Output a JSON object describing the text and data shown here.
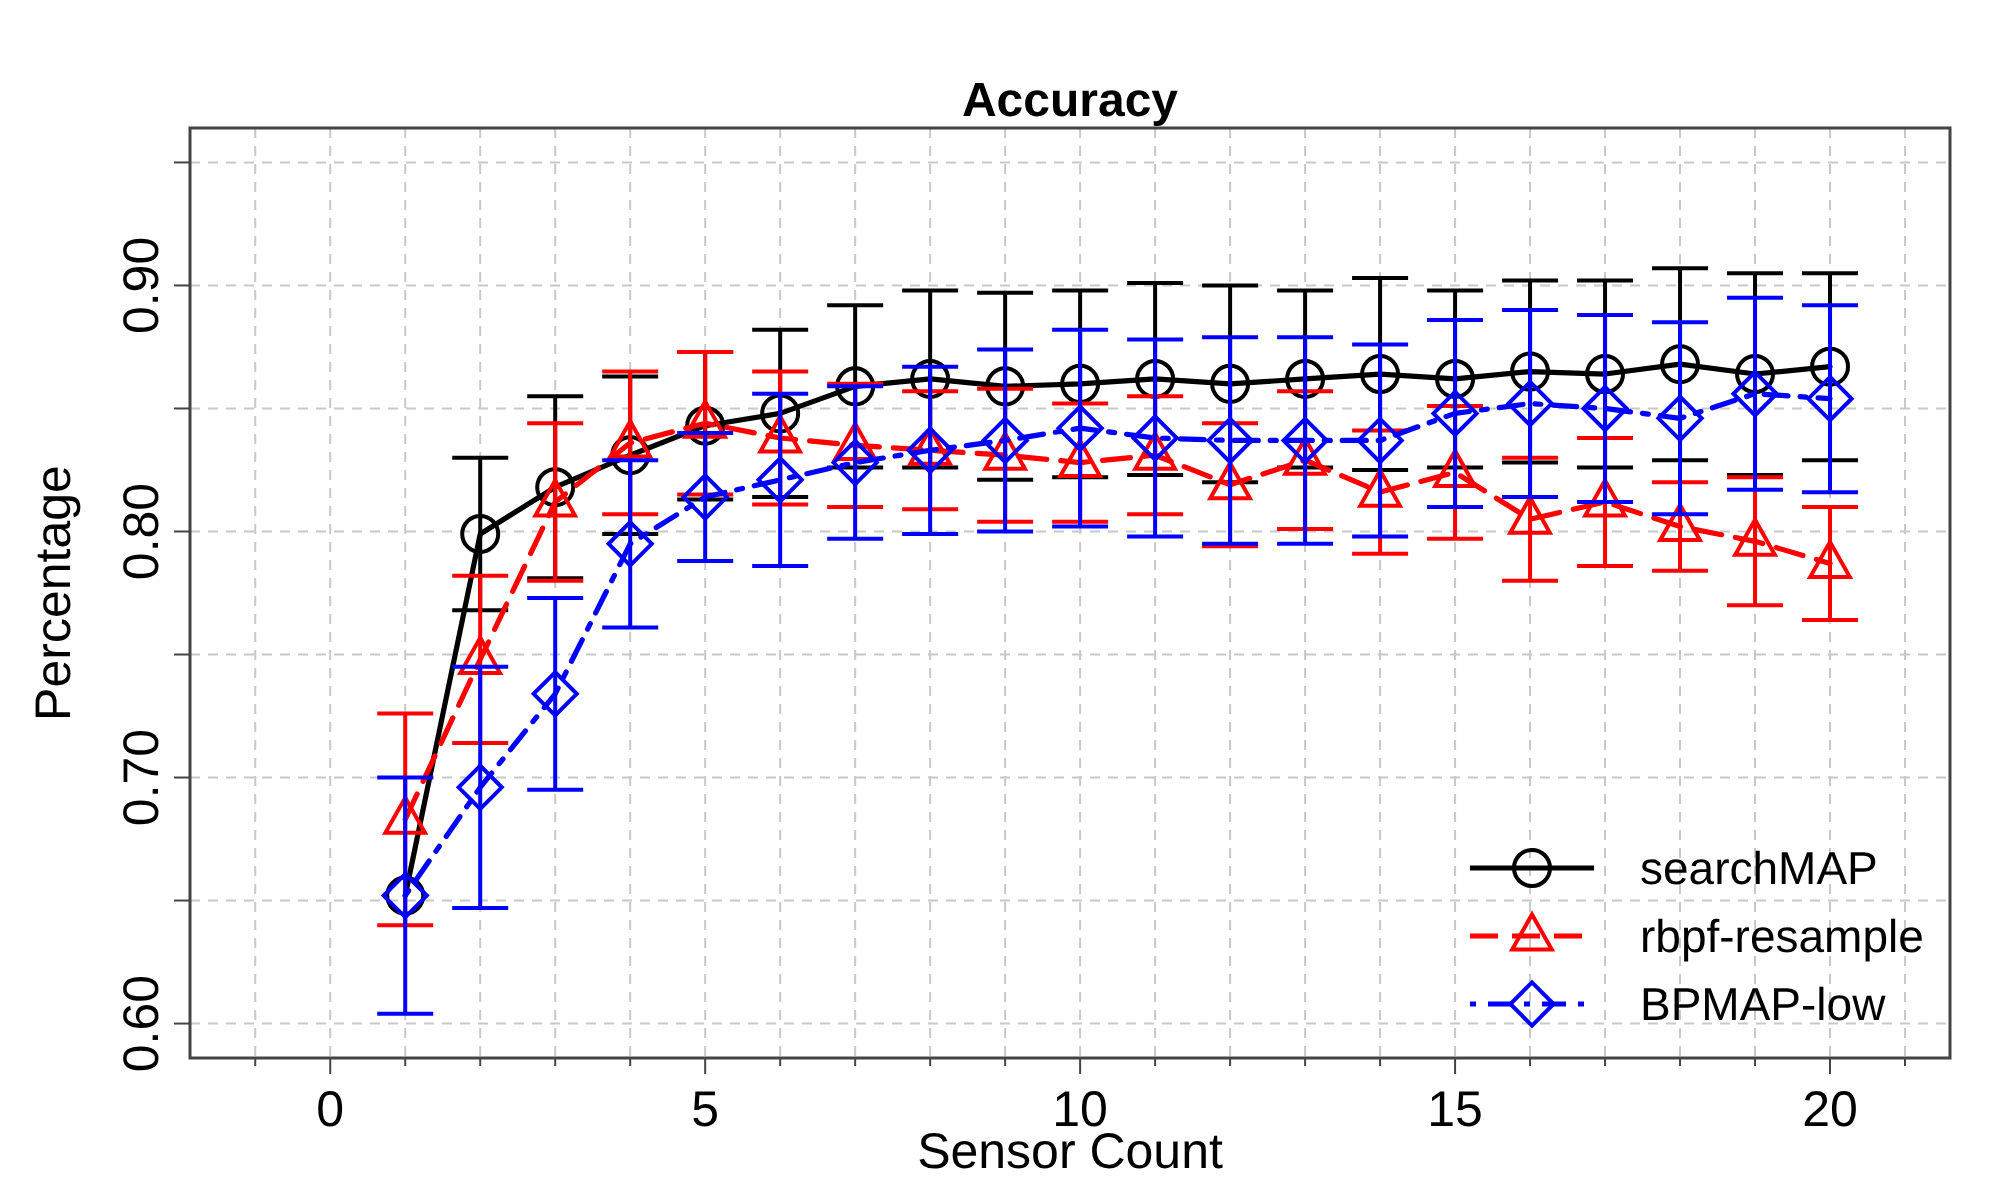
{
  "chart_data": {
    "type": "line",
    "title": "Accuracy",
    "xlabel": "Sensor Count",
    "ylabel": "Percentage",
    "x": [
      1,
      2,
      3,
      4,
      5,
      6,
      7,
      8,
      9,
      10,
      11,
      12,
      13,
      14,
      15,
      16,
      17,
      18,
      19,
      20
    ],
    "series": [
      {
        "name": "searchMAP",
        "color": "#000000",
        "marker": "circle",
        "line_style": "solid",
        "values": [
          0.652,
          0.799,
          0.818,
          0.831,
          0.843,
          0.848,
          0.859,
          0.862,
          0.859,
          0.86,
          0.862,
          0.86,
          0.862,
          0.864,
          0.862,
          0.865,
          0.864,
          0.868,
          0.864,
          0.867
        ],
        "errors": [
          null,
          0.031,
          0.037,
          0.032,
          0.03,
          0.034,
          0.033,
          0.036,
          0.038,
          0.038,
          0.039,
          0.04,
          0.036,
          0.039,
          0.036,
          0.037,
          0.038,
          0.039,
          0.041,
          0.038
        ]
      },
      {
        "name": "rbpf-resample",
        "color": "#ff0000",
        "marker": "triangle",
        "line_style": "dashed",
        "values": [
          0.683,
          0.748,
          0.812,
          0.836,
          0.844,
          0.838,
          0.835,
          0.833,
          0.831,
          0.828,
          0.831,
          0.819,
          0.829,
          0.816,
          0.824,
          0.805,
          0.812,
          0.802,
          0.796,
          0.787
        ],
        "errors": [
          0.043,
          0.034,
          0.032,
          0.029,
          0.029,
          0.027,
          0.025,
          0.024,
          0.027,
          0.024,
          0.024,
          0.025,
          0.028,
          0.025,
          0.027,
          0.025,
          0.026,
          0.018,
          0.026,
          0.023
        ]
      },
      {
        "name": "BPMAP-low",
        "color": "#0000ff",
        "marker": "diamond",
        "line_style": "dotted",
        "values": [
          0.652,
          0.696,
          0.734,
          0.795,
          0.814,
          0.821,
          0.828,
          0.833,
          0.837,
          0.842,
          0.838,
          0.837,
          0.837,
          0.837,
          0.848,
          0.852,
          0.85,
          0.846,
          0.856,
          0.854
        ],
        "errors": [
          0.048,
          0.049,
          0.039,
          0.034,
          0.026,
          0.035,
          0.031,
          0.034,
          0.037,
          0.04,
          0.04,
          0.042,
          0.042,
          0.039,
          0.038,
          0.038,
          0.038,
          0.039,
          0.039,
          0.038
        ]
      }
    ],
    "xlim": [
      -1.87,
      21.6
    ],
    "ylim": [
      0.586,
      0.964
    ],
    "xticks": [
      {
        "value": -1,
        "label": null
      },
      0,
      {
        "value": 1,
        "label": null
      },
      {
        "value": 2,
        "label": null
      },
      {
        "value": 3,
        "label": null
      },
      {
        "value": 4,
        "label": null
      },
      5,
      {
        "value": 6,
        "label": null
      },
      {
        "value": 7,
        "label": null
      },
      {
        "value": 8,
        "label": null
      },
      {
        "value": 9,
        "label": null
      },
      10,
      {
        "value": 11,
        "label": null
      },
      {
        "value": 12,
        "label": null
      },
      {
        "value": 13,
        "label": null
      },
      {
        "value": 14,
        "label": null
      },
      15,
      {
        "value": 16,
        "label": null
      },
      {
        "value": 17,
        "label": null
      },
      {
        "value": 18,
        "label": null
      },
      {
        "value": 19,
        "label": null
      },
      20,
      {
        "value": 21,
        "label": null
      }
    ],
    "yticks": [
      {
        "value": 0.6,
        "label": "0.60"
      },
      {
        "value": 0.65,
        "label": null
      },
      {
        "value": 0.7,
        "label": "0.70"
      },
      {
        "value": 0.75,
        "label": null
      },
      {
        "value": 0.8,
        "label": "0.80"
      },
      {
        "value": 0.85,
        "label": null
      },
      {
        "value": 0.9,
        "label": "0.90"
      },
      {
        "value": 0.95,
        "label": null
      }
    ],
    "grid": true,
    "legend": "bottom right"
  }
}
